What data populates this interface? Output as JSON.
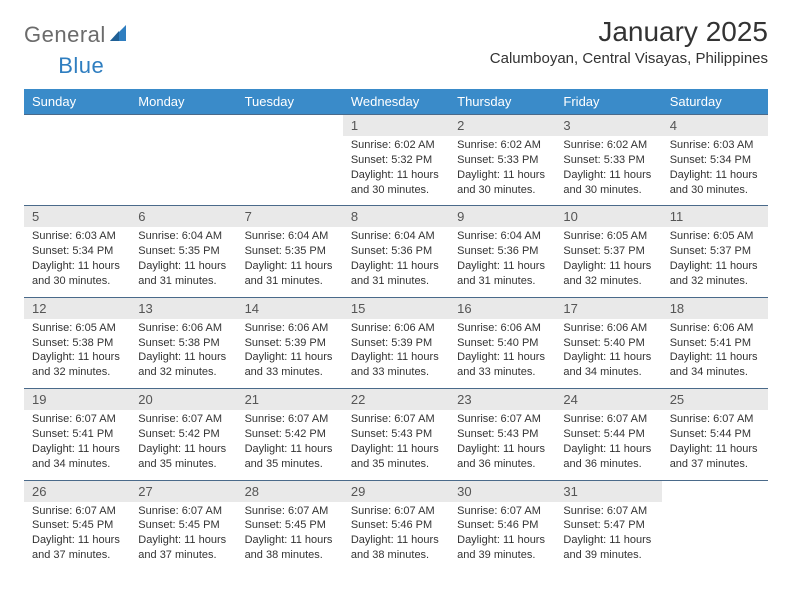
{
  "logo": {
    "text1": "General",
    "text2": "Blue"
  },
  "title": "January 2025",
  "subtitle": "Calumboyan, Central Visayas, Philippines",
  "colors": {
    "header_bg": "#3a8bc9",
    "header_text": "#ffffff",
    "daynum_bg": "#e9e9e9",
    "cell_border": "#4a6a8a",
    "logo_gray": "#6b6b6b",
    "logo_blue": "#2f7ec0"
  },
  "day_headers": [
    "Sunday",
    "Monday",
    "Tuesday",
    "Wednesday",
    "Thursday",
    "Friday",
    "Saturday"
  ],
  "weeks": [
    [
      null,
      null,
      null,
      {
        "n": "1",
        "sr": "6:02 AM",
        "ss": "5:32 PM",
        "dl": "11 hours and 30 minutes."
      },
      {
        "n": "2",
        "sr": "6:02 AM",
        "ss": "5:33 PM",
        "dl": "11 hours and 30 minutes."
      },
      {
        "n": "3",
        "sr": "6:02 AM",
        "ss": "5:33 PM",
        "dl": "11 hours and 30 minutes."
      },
      {
        "n": "4",
        "sr": "6:03 AM",
        "ss": "5:34 PM",
        "dl": "11 hours and 30 minutes."
      }
    ],
    [
      {
        "n": "5",
        "sr": "6:03 AM",
        "ss": "5:34 PM",
        "dl": "11 hours and 30 minutes."
      },
      {
        "n": "6",
        "sr": "6:04 AM",
        "ss": "5:35 PM",
        "dl": "11 hours and 31 minutes."
      },
      {
        "n": "7",
        "sr": "6:04 AM",
        "ss": "5:35 PM",
        "dl": "11 hours and 31 minutes."
      },
      {
        "n": "8",
        "sr": "6:04 AM",
        "ss": "5:36 PM",
        "dl": "11 hours and 31 minutes."
      },
      {
        "n": "9",
        "sr": "6:04 AM",
        "ss": "5:36 PM",
        "dl": "11 hours and 31 minutes."
      },
      {
        "n": "10",
        "sr": "6:05 AM",
        "ss": "5:37 PM",
        "dl": "11 hours and 32 minutes."
      },
      {
        "n": "11",
        "sr": "6:05 AM",
        "ss": "5:37 PM",
        "dl": "11 hours and 32 minutes."
      }
    ],
    [
      {
        "n": "12",
        "sr": "6:05 AM",
        "ss": "5:38 PM",
        "dl": "11 hours and 32 minutes."
      },
      {
        "n": "13",
        "sr": "6:06 AM",
        "ss": "5:38 PM",
        "dl": "11 hours and 32 minutes."
      },
      {
        "n": "14",
        "sr": "6:06 AM",
        "ss": "5:39 PM",
        "dl": "11 hours and 33 minutes."
      },
      {
        "n": "15",
        "sr": "6:06 AM",
        "ss": "5:39 PM",
        "dl": "11 hours and 33 minutes."
      },
      {
        "n": "16",
        "sr": "6:06 AM",
        "ss": "5:40 PM",
        "dl": "11 hours and 33 minutes."
      },
      {
        "n": "17",
        "sr": "6:06 AM",
        "ss": "5:40 PM",
        "dl": "11 hours and 34 minutes."
      },
      {
        "n": "18",
        "sr": "6:06 AM",
        "ss": "5:41 PM",
        "dl": "11 hours and 34 minutes."
      }
    ],
    [
      {
        "n": "19",
        "sr": "6:07 AM",
        "ss": "5:41 PM",
        "dl": "11 hours and 34 minutes."
      },
      {
        "n": "20",
        "sr": "6:07 AM",
        "ss": "5:42 PM",
        "dl": "11 hours and 35 minutes."
      },
      {
        "n": "21",
        "sr": "6:07 AM",
        "ss": "5:42 PM",
        "dl": "11 hours and 35 minutes."
      },
      {
        "n": "22",
        "sr": "6:07 AM",
        "ss": "5:43 PM",
        "dl": "11 hours and 35 minutes."
      },
      {
        "n": "23",
        "sr": "6:07 AM",
        "ss": "5:43 PM",
        "dl": "11 hours and 36 minutes."
      },
      {
        "n": "24",
        "sr": "6:07 AM",
        "ss": "5:44 PM",
        "dl": "11 hours and 36 minutes."
      },
      {
        "n": "25",
        "sr": "6:07 AM",
        "ss": "5:44 PM",
        "dl": "11 hours and 37 minutes."
      }
    ],
    [
      {
        "n": "26",
        "sr": "6:07 AM",
        "ss": "5:45 PM",
        "dl": "11 hours and 37 minutes."
      },
      {
        "n": "27",
        "sr": "6:07 AM",
        "ss": "5:45 PM",
        "dl": "11 hours and 37 minutes."
      },
      {
        "n": "28",
        "sr": "6:07 AM",
        "ss": "5:45 PM",
        "dl": "11 hours and 38 minutes."
      },
      {
        "n": "29",
        "sr": "6:07 AM",
        "ss": "5:46 PM",
        "dl": "11 hours and 38 minutes."
      },
      {
        "n": "30",
        "sr": "6:07 AM",
        "ss": "5:46 PM",
        "dl": "11 hours and 39 minutes."
      },
      {
        "n": "31",
        "sr": "6:07 AM",
        "ss": "5:47 PM",
        "dl": "11 hours and 39 minutes."
      },
      null
    ]
  ],
  "labels": {
    "sunrise": "Sunrise:",
    "sunset": "Sunset:",
    "daylight": "Daylight:"
  }
}
